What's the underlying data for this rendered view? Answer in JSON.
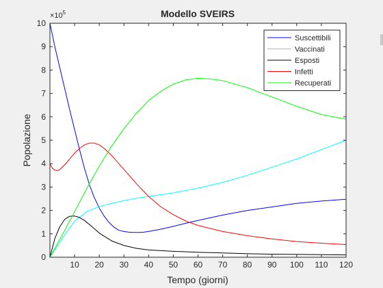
{
  "chart_data": {
    "type": "line",
    "title": "Modello SVEIRS",
    "xlabel": "Tempo (giorni)",
    "ylabel": "Popolazione",
    "xlim": [
      0,
      120
    ],
    "ylim": [
      0,
      10
    ],
    "y_multiplier": "×10",
    "y_multiplier_exp": "5",
    "xticks": [
      10,
      20,
      30,
      40,
      50,
      60,
      70,
      80,
      90,
      100,
      110,
      120
    ],
    "yticks": [
      0,
      1,
      2,
      3,
      4,
      5,
      6,
      7,
      8,
      9,
      10
    ],
    "legend_position": "top-right",
    "grid": false,
    "series": [
      {
        "name": "Suscettibili",
        "color": "#0000ff",
        "x": [
          0,
          2,
          4,
          6,
          8,
          10,
          12,
          14,
          16,
          18,
          20,
          22,
          24,
          26,
          28,
          30,
          32,
          34,
          36,
          38,
          40,
          45,
          50,
          55,
          60,
          70,
          80,
          90,
          100,
          110,
          120
        ],
        "y": [
          10.0,
          9.0,
          8.1,
          7.2,
          6.3,
          5.45,
          4.6,
          3.8,
          3.1,
          2.55,
          2.1,
          1.75,
          1.48,
          1.28,
          1.15,
          1.1,
          1.07,
          1.06,
          1.06,
          1.07,
          1.1,
          1.2,
          1.32,
          1.45,
          1.57,
          1.8,
          2.0,
          2.15,
          2.3,
          2.4,
          2.48
        ]
      },
      {
        "name": "Vaccinati",
        "color": "#00ffff",
        "x": [
          0,
          5,
          10,
          15,
          20,
          25,
          30,
          35,
          40,
          50,
          60,
          70,
          80,
          90,
          100,
          110,
          120
        ],
        "y": [
          0.0,
          0.8,
          1.55,
          1.95,
          2.17,
          2.3,
          2.42,
          2.52,
          2.6,
          2.75,
          2.95,
          3.2,
          3.5,
          3.85,
          4.2,
          4.6,
          5.0
        ]
      },
      {
        "name": "Esposti",
        "color": "#000000",
        "x": [
          0,
          2,
          4,
          6,
          8,
          10,
          12,
          14,
          16,
          18,
          20,
          25,
          30,
          35,
          40,
          50,
          60,
          70,
          80,
          90,
          100,
          110,
          120
        ],
        "y": [
          0.0,
          0.8,
          1.3,
          1.62,
          1.75,
          1.76,
          1.7,
          1.57,
          1.4,
          1.22,
          1.03,
          0.7,
          0.5,
          0.38,
          0.31,
          0.25,
          0.21,
          0.18,
          0.15,
          0.13,
          0.12,
          0.11,
          0.1
        ]
      },
      {
        "name": "Infetti",
        "color": "#ff0000",
        "x": [
          0,
          1,
          2,
          3,
          4,
          6,
          8,
          10,
          12,
          14,
          16,
          18,
          20,
          22,
          25,
          30,
          35,
          40,
          45,
          50,
          55,
          60,
          70,
          80,
          90,
          100,
          110,
          120
        ],
        "y": [
          4.0,
          3.8,
          3.72,
          3.7,
          3.75,
          3.95,
          4.2,
          4.45,
          4.65,
          4.8,
          4.88,
          4.88,
          4.8,
          4.65,
          4.35,
          3.75,
          3.15,
          2.6,
          2.15,
          1.82,
          1.55,
          1.36,
          1.1,
          0.92,
          0.78,
          0.67,
          0.6,
          0.54
        ]
      },
      {
        "name": "Recuperati",
        "color": "#00ff00",
        "x": [
          0,
          5,
          10,
          15,
          20,
          25,
          30,
          35,
          40,
          45,
          50,
          55,
          60,
          65,
          70,
          80,
          90,
          100,
          110,
          120
        ],
        "y": [
          0.0,
          0.95,
          1.95,
          2.95,
          3.9,
          4.75,
          5.5,
          6.15,
          6.7,
          7.1,
          7.4,
          7.58,
          7.65,
          7.62,
          7.55,
          7.25,
          6.85,
          6.45,
          6.1,
          5.9
        ]
      }
    ]
  }
}
